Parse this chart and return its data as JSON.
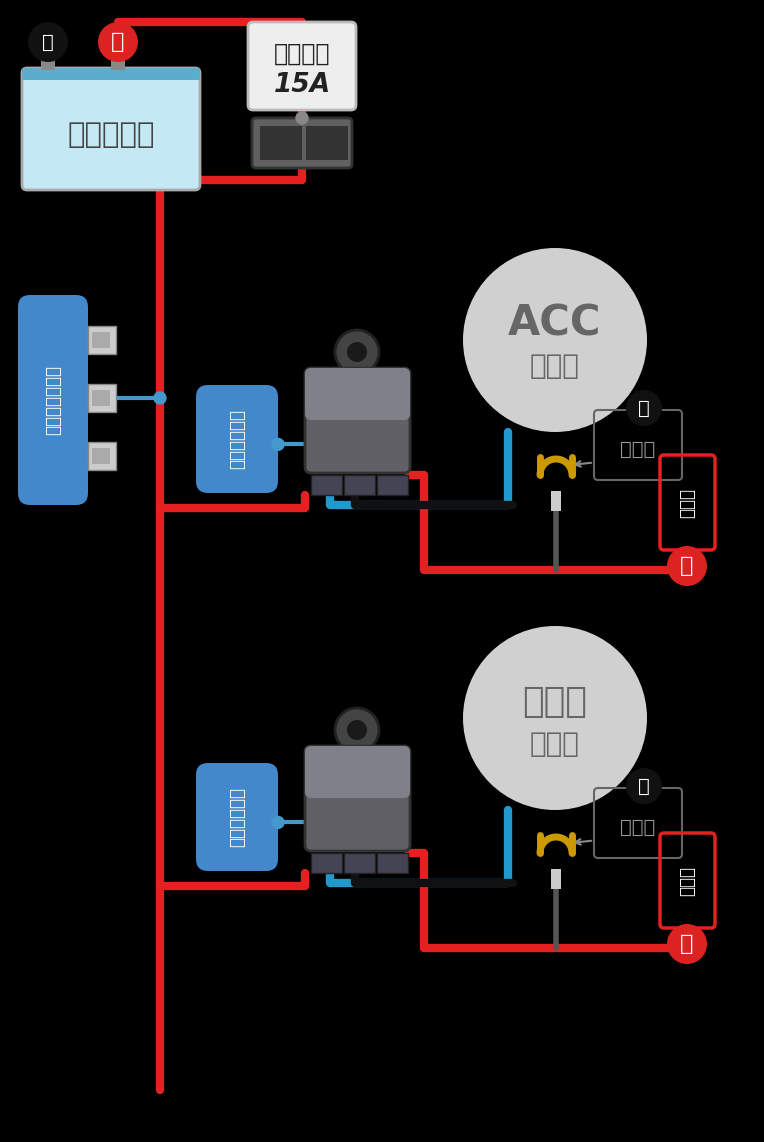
{
  "bg_color": "#000000",
  "battery_label": "バッテリー",
  "fuse_label1": "ヒューズ",
  "fuse_label2": "15A",
  "relay_label": "リレーキット",
  "branch_label": "分岐用ハーネス",
  "acc_label1": "ACC",
  "acc_label2": "電源へ",
  "ilumi_label1": "イルミ",
  "ilumi_label2": "電源へ",
  "earth_label": "アース",
  "denso_label": "電装品",
  "wire_red": "#e52020",
  "wire_blue": "#2299cc",
  "wire_black": "#111111",
  "battery_bg": "#c5e8f5",
  "label_bg_blue": "#4488cc",
  "fuse_bg": "#eeeeee",
  "circle_bg": "#d0d0d0",
  "plus_red": "#dd2222",
  "gold_color": "#cc9900",
  "relay_comp_dark": "#555566",
  "relay_comp_darker": "#444455",
  "relay_ring": "#444444"
}
